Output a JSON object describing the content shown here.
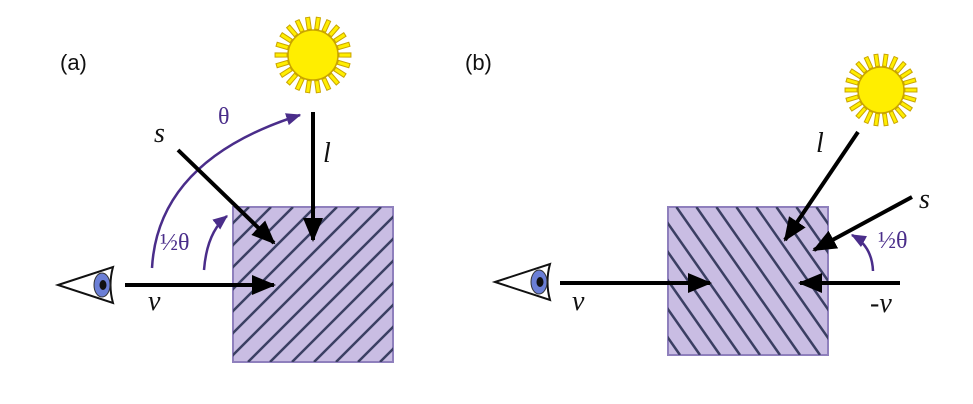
{
  "colors": {
    "block_fill": "#c9bde3",
    "block_stroke": "#8f80bd",
    "hatch": "#3b3f63",
    "arrow": "#000000",
    "angle": "#4a2d8a",
    "sun_fill": "#ffee00",
    "sun_stroke": "#c9a400",
    "eye_iris": "#6b7fd6"
  },
  "panel_a": {
    "label": "(a)",
    "s_label": "s",
    "l_label": "l",
    "v_label": "v",
    "theta_label": "θ",
    "half_theta_label": "½θ",
    "icons": [
      "eye-icon",
      "sun-icon"
    ]
  },
  "panel_b": {
    "label": "(b)",
    "l_label": "l",
    "s_label": "s",
    "v_label": "v",
    "neg_v_label": "-v",
    "half_theta_label": "½θ",
    "icons": [
      "eye-icon",
      "sun-icon"
    ]
  }
}
